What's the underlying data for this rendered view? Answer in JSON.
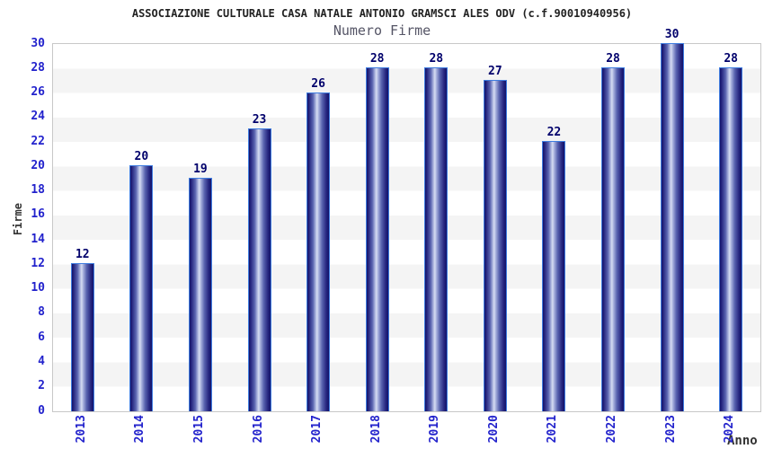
{
  "chart_data": {
    "type": "bar",
    "title": "ASSOCIAZIONE CULTURALE CASA NATALE ANTONIO GRAMSCI ALES ODV (c.f.90010940956)",
    "subtitle": "Numero Firme",
    "xlabel": "Anno",
    "ylabel": "Firme",
    "categories": [
      "2013",
      "2014",
      "2015",
      "2016",
      "2017",
      "2018",
      "2019",
      "2020",
      "2021",
      "2022",
      "2023",
      "2024"
    ],
    "values": [
      12,
      20,
      19,
      23,
      26,
      28,
      28,
      27,
      22,
      28,
      30,
      28
    ],
    "ylim": [
      0,
      30
    ],
    "ytick_step": 2,
    "yticks": [
      0,
      2,
      4,
      6,
      8,
      10,
      12,
      14,
      16,
      18,
      20,
      22,
      24,
      26,
      28,
      30
    ],
    "grid": "horizontal-bands-every-2-units",
    "legend_position": "none",
    "bar_style": "vertical-cylinder-gradient",
    "colors": {
      "title": "#222222",
      "subtitle": "#555566",
      "axis_label": "#333333",
      "tick_label": "#2222cc",
      "value_label": "#00006b",
      "bar_dark": "#12126a",
      "bar_deep": "#26267f",
      "bar_mid": "#5a64b0",
      "bar_soft": "#aab3de",
      "bar_light": "#d6dcf2",
      "bar_border": "#3f7de0",
      "band_white": "#ffffff",
      "band_gray": "#f4f4f4",
      "plot_border": "#c8c8c8"
    }
  }
}
